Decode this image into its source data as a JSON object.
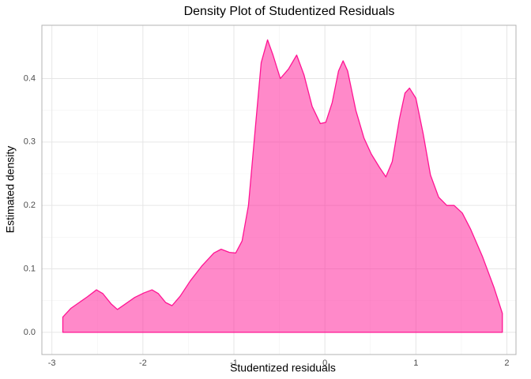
{
  "chart_data": {
    "type": "area",
    "title": "Density Plot of Studentized Residuals",
    "x_label": "Studentized residuals",
    "y_label": "Estimated density",
    "x": [
      -2.88,
      -2.79,
      -2.7,
      -2.61,
      -2.51,
      -2.44,
      -2.35,
      -2.28,
      -2.2,
      -2.09,
      -1.99,
      -1.9,
      -1.83,
      -1.75,
      -1.68,
      -1.59,
      -1.48,
      -1.35,
      -1.22,
      -1.14,
      -1.05,
      -0.98,
      -0.91,
      -0.84,
      -0.77,
      -0.7,
      -0.63,
      -0.57,
      -0.49,
      -0.4,
      -0.31,
      -0.23,
      -0.14,
      -0.05,
      0.01,
      0.08,
      0.15,
      0.2,
      0.25,
      0.34,
      0.43,
      0.51,
      0.6,
      0.67,
      0.74,
      0.82,
      0.88,
      0.93,
      1.0,
      1.08,
      1.16,
      1.25,
      1.34,
      1.42,
      1.51,
      1.6,
      1.73,
      1.86,
      1.95
    ],
    "values": [
      0.024,
      0.038,
      0.047,
      0.056,
      0.067,
      0.061,
      0.045,
      0.036,
      0.044,
      0.055,
      0.062,
      0.067,
      0.061,
      0.047,
      0.042,
      0.057,
      0.081,
      0.105,
      0.125,
      0.131,
      0.126,
      0.125,
      0.144,
      0.2,
      0.313,
      0.425,
      0.461,
      0.437,
      0.4,
      0.415,
      0.437,
      0.406,
      0.356,
      0.329,
      0.331,
      0.362,
      0.412,
      0.428,
      0.412,
      0.35,
      0.306,
      0.281,
      0.26,
      0.245,
      0.269,
      0.337,
      0.377,
      0.385,
      0.369,
      0.313,
      0.248,
      0.213,
      0.2,
      0.2,
      0.188,
      0.163,
      0.12,
      0.07,
      0.03
    ],
    "color": "#ff1493",
    "xlim": [
      -3.11,
      2.1
    ],
    "ylim": [
      -0.035,
      0.484
    ],
    "xticks": [
      -3,
      -2,
      -1,
      0,
      1,
      2
    ],
    "yticks": [
      {
        "value": 0,
        "label": "0.0"
      },
      0.1,
      0.2,
      0.3,
      0.4
    ],
    "grid": true
  }
}
